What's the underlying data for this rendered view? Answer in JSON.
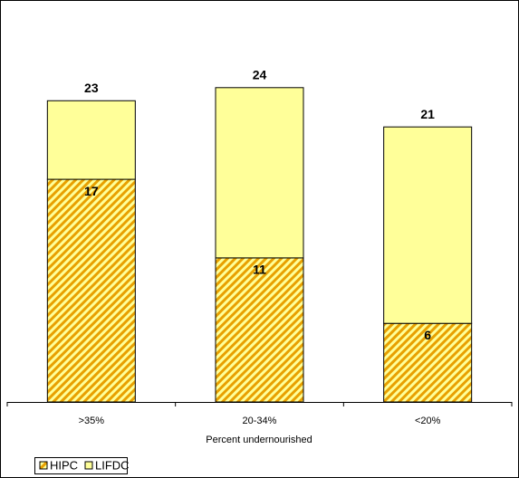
{
  "chart_data": {
    "type": "stacked_bar",
    "x_label": "Percent undernourished",
    "categories": [
      ">35%",
      "20-34%",
      "<20%"
    ],
    "series": [
      {
        "name": "HIPC",
        "color": "#e8a000",
        "hatch": true,
        "values": [
          17,
          11,
          6
        ]
      },
      {
        "name": "LIFDC",
        "color": "#ffff99",
        "hatch": false,
        "values": [
          6,
          13,
          15
        ]
      }
    ],
    "totals": [
      23,
      24,
      21
    ],
    "ylim": [
      0,
      30
    ],
    "legend": "bottom-left"
  }
}
